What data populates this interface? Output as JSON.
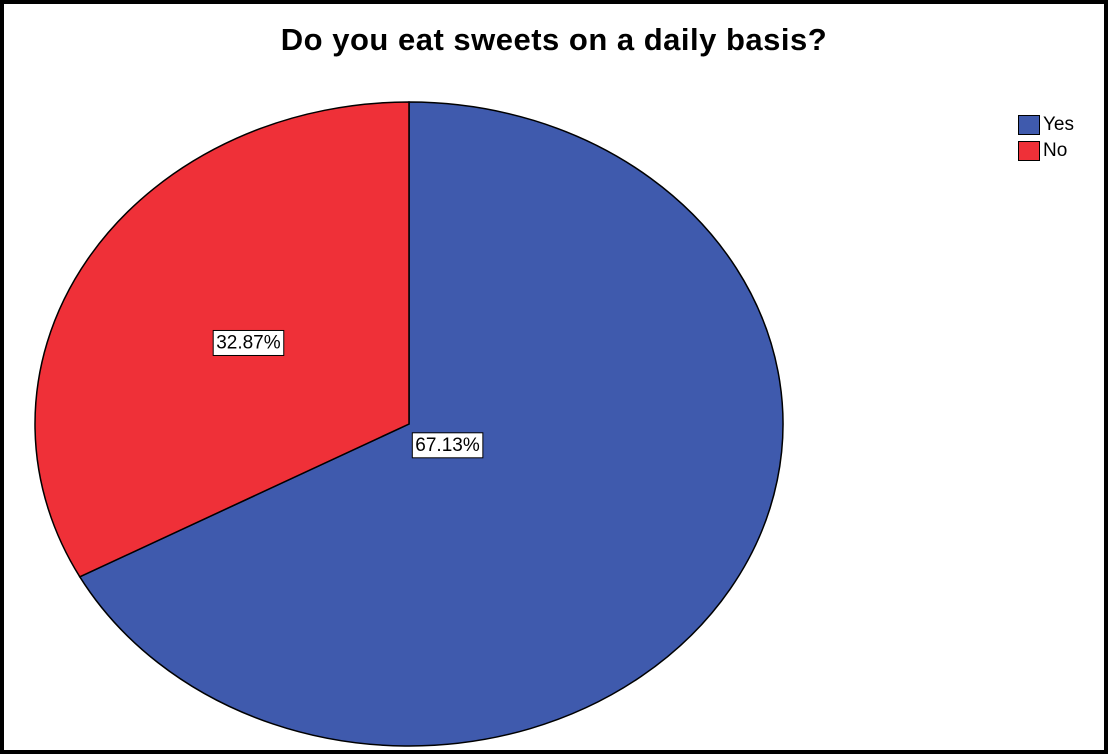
{
  "chart_data": {
    "type": "pie",
    "title": "Do you eat sweets on a daily basis?",
    "slices": [
      {
        "label": "Yes",
        "value": 67.13,
        "display": "67.13%",
        "color": "#3f5aad"
      },
      {
        "label": "No",
        "value": 32.87,
        "display": "32.87%",
        "color": "#ef3038"
      }
    ],
    "start_angle_deg": 0,
    "direction": "clockwise",
    "legend_position": "top-right",
    "outline_color": "#000000"
  }
}
